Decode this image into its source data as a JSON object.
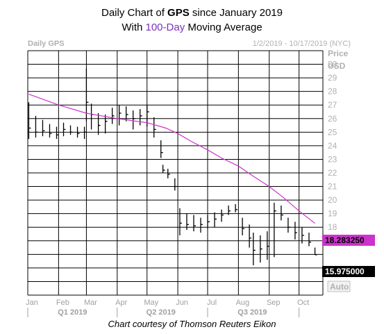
{
  "title": {
    "prefix": "Daily Chart of ",
    "ticker": "GPS",
    "suffix": " since January 2019",
    "line2_prefix": "With ",
    "line2_ma": "100-Day",
    "line2_suffix": " Moving Average"
  },
  "header": {
    "left_label": "Daily GPS",
    "date_range": "1/2/2019 - 10/17/2019 (NYC)"
  },
  "axis": {
    "y_title_1": "Price",
    "y_title_2": "USD",
    "auto_label": "Auto"
  },
  "credit": "Chart courtesy of Thomson Reuters Eikon",
  "colors": {
    "price": "#000000",
    "moving_average": "#cc33cc",
    "grid": "#000000",
    "ma_box": "#cc33cc",
    "price_box": "#000000"
  },
  "chart_data": {
    "type": "line",
    "title": "Daily Chart of GPS since January 2019",
    "subtitle": "With 100-Day Moving Average",
    "xlabel": "",
    "ylabel": "Price USD",
    "ylim": [
      13,
      31
    ],
    "yticks": [
      17,
      18,
      19,
      20,
      21,
      22,
      23,
      24,
      25,
      26,
      27,
      28,
      29,
      30
    ],
    "grid": true,
    "x_month_labels": [
      "Jan",
      "Feb",
      "Mar",
      "Apr",
      "May",
      "Jun",
      "Jul",
      "Aug",
      "Sep",
      "Oct"
    ],
    "x_quarter_labels": [
      "Q1 2019",
      "Q2 2019",
      "Q3 2019"
    ],
    "last_values": {
      "moving_average": "18.283250",
      "price": "15.975000"
    },
    "series": [
      {
        "name": "GPS",
        "style": "ohlc-bars",
        "x": [
          "2019-01-02",
          "2019-01-09",
          "2019-01-16",
          "2019-01-23",
          "2019-01-30",
          "2019-02-06",
          "2019-02-13",
          "2019-02-20",
          "2019-02-27",
          "2019-03-01",
          "2019-03-06",
          "2019-03-13",
          "2019-03-20",
          "2019-03-27",
          "2019-04-03",
          "2019-04-10",
          "2019-04-17",
          "2019-04-24",
          "2019-05-01",
          "2019-05-08",
          "2019-05-15",
          "2019-05-17",
          "2019-05-22",
          "2019-05-29",
          "2019-06-03",
          "2019-06-10",
          "2019-06-17",
          "2019-06-24",
          "2019-07-01",
          "2019-07-08",
          "2019-07-15",
          "2019-07-22",
          "2019-07-29",
          "2019-08-05",
          "2019-08-12",
          "2019-08-16",
          "2019-08-23",
          "2019-08-30",
          "2019-09-06",
          "2019-09-13",
          "2019-09-20",
          "2019-09-27",
          "2019-10-04",
          "2019-10-11",
          "2019-10-17"
        ],
        "lows": [
          24.5,
          24.6,
          24.7,
          24.6,
          24.5,
          24.7,
          24.8,
          24.6,
          24.5,
          25.8,
          25.2,
          24.8,
          24.9,
          25.6,
          25.5,
          25.8,
          25.2,
          25.5,
          25.4,
          24.6,
          23.1,
          22.0,
          21.6,
          20.7,
          17.4,
          17.8,
          17.7,
          17.6,
          17.9,
          18.0,
          18.4,
          18.9,
          19.1,
          17.4,
          16.5,
          15.2,
          15.4,
          15.6,
          15.8,
          18.5,
          17.6,
          17.1,
          16.8,
          16.6,
          15.97
        ],
        "highs": [
          27.2,
          26.2,
          25.9,
          25.6,
          25.4,
          25.7,
          25.5,
          25.4,
          25.4,
          29.7,
          27.1,
          26.4,
          26.3,
          26.8,
          27.0,
          26.9,
          26.6,
          26.7,
          27.0,
          26.1,
          24.4,
          22.6,
          22.3,
          21.6,
          19.4,
          19.0,
          18.9,
          18.7,
          18.9,
          19.1,
          19.3,
          19.6,
          19.7,
          18.7,
          18.2,
          17.6,
          17.4,
          17.7,
          19.8,
          19.6,
          18.7,
          18.4,
          18.0,
          17.6,
          16.5
        ],
        "closes": [
          25.3,
          25.0,
          25.1,
          24.9,
          24.8,
          25.2,
          25.0,
          24.9,
          25.0,
          27.2,
          26.3,
          25.5,
          25.8,
          26.2,
          26.4,
          26.3,
          26.0,
          26.2,
          26.5,
          25.2,
          23.5,
          22.2,
          21.9,
          21.0,
          18.3,
          18.2,
          18.1,
          18.2,
          18.4,
          18.6,
          18.9,
          19.2,
          19.3,
          17.9,
          17.2,
          16.3,
          16.4,
          16.6,
          19.2,
          18.9,
          18.0,
          17.6,
          17.4,
          16.9,
          15.97
        ]
      },
      {
        "name": "100-Day",
        "style": "line",
        "x": [
          "2019-01-02",
          "2019-02-01",
          "2019-03-01",
          "2019-04-01",
          "2019-05-01",
          "2019-05-20",
          "2019-06-01",
          "2019-06-15",
          "2019-07-01",
          "2019-07-15",
          "2019-08-01",
          "2019-08-15",
          "2019-09-01",
          "2019-09-15",
          "2019-10-01",
          "2019-10-17"
        ],
        "values": [
          27.8,
          27.0,
          26.4,
          26.0,
          25.7,
          25.3,
          24.9,
          24.3,
          23.7,
          23.1,
          22.5,
          21.8,
          21.0,
          20.2,
          19.2,
          18.283
        ]
      }
    ]
  }
}
